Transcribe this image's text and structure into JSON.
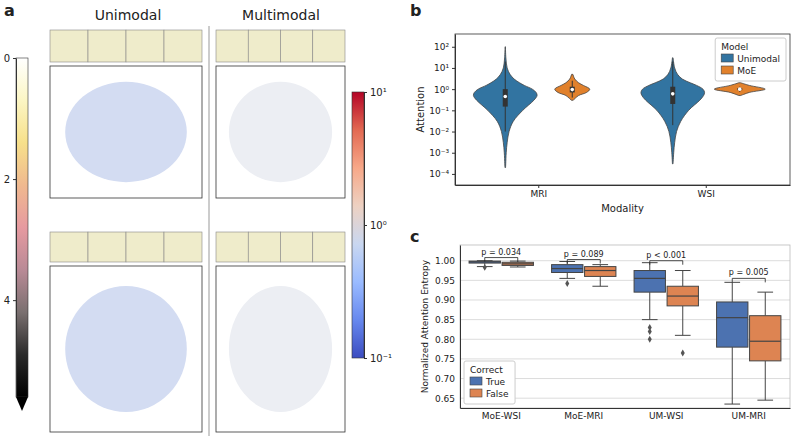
{
  "chart_data": [
    {
      "type": "image_panel",
      "panel": "a",
      "titles": [
        "Unimodal",
        "Multimodal"
      ],
      "colorbars": [
        {
          "range": [
            0,
            5.6
          ],
          "ticks": [
            0,
            2,
            4
          ],
          "colors": [
            "#ffffff",
            "#fcf6c4",
            "#f7e08a",
            "#f0b98f",
            "#e69aa0",
            "#b98a96",
            "#7a7070",
            "#2a2a2a",
            "#000000"
          ]
        },
        {
          "range": [
            0.1,
            10
          ],
          "log": true,
          "ticks": [
            {
              "value": 0.1,
              "label": "10⁻¹"
            },
            {
              "value": 1,
              "label": "10⁰"
            },
            {
              "value": 10,
              "label": "10¹"
            }
          ],
          "colors": [
            "#3b4cc0",
            "#6788ee",
            "#9abbff",
            "#c9d7f0",
            "#edd1c2",
            "#f7a889",
            "#e26952",
            "#b40426"
          ]
        }
      ]
    },
    {
      "type": "violin",
      "panel": "b",
      "x_label": "Modality",
      "y_label": "Attention",
      "categories": [
        "MRI",
        "WSI"
      ],
      "log": "y",
      "ylim": [
        3e-05,
        400
      ],
      "yticks": [
        {
          "value": 0.0001,
          "label": "10⁻⁴"
        },
        {
          "value": 0.001,
          "label": "10⁻³"
        },
        {
          "value": 0.01,
          "label": "10⁻²"
        },
        {
          "value": 0.1,
          "label": "10⁻¹"
        },
        {
          "value": 1,
          "label": "10⁰"
        },
        {
          "value": 10,
          "label": "10¹"
        },
        {
          "value": 100,
          "label": "10²"
        }
      ],
      "legend": "upper right",
      "legend_title": "Model",
      "density_y": [
        0.0002,
        0.0003,
        0.001,
        0.003,
        0.01,
        0.03,
        0.1,
        0.3,
        0.5,
        0.7,
        1,
        1.5,
        2,
        3,
        5,
        10,
        30,
        100
      ],
      "series": [
        {
          "name": "Unimodal",
          "color": "#3274a1",
          "density": [
            [
              0.01,
              0.015,
              0.03,
              0.06,
              0.12,
              0.25,
              0.55,
              0.9,
              1.0,
              0.97,
              0.85,
              0.6,
              0.45,
              0.28,
              0.15,
              0.06,
              0.02,
              0.005
            ],
            [
              null,
              0.01,
              0.03,
              0.06,
              0.12,
              0.25,
              0.5,
              0.85,
              0.97,
              1.0,
              0.95,
              0.75,
              0.55,
              0.3,
              0.15,
              0.06,
              0.01,
              null
            ]
          ],
          "quartiles": [
            [
              0.15,
              0.45,
              1.0
            ],
            [
              0.2,
              0.6,
              1.3
            ]
          ],
          "whiskers": [
            [
              0.01,
              20
            ],
            [
              0.02,
              20
            ]
          ]
        },
        {
          "name": "MoE",
          "color": "#e1812c",
          "density": [
            [
              null,
              null,
              null,
              null,
              null,
              null,
              null,
              0.03,
              0.2,
              0.45,
              0.55,
              0.35,
              0.2,
              0.08,
              0.02,
              null,
              null,
              null
            ],
            [
              null,
              null,
              null,
              null,
              null,
              null,
              null,
              null,
              0.03,
              0.3,
              0.8,
              0.3,
              0.03,
              null,
              null,
              null,
              null,
              null
            ]
          ],
          "quartiles": [
            [
              0.7,
              0.95,
              1.3
            ],
            [
              0.9,
              1.0,
              1.1
            ]
          ],
          "whiskers": [
            [
              0.4,
              2.5
            ],
            [
              0.75,
              1.3
            ]
          ]
        }
      ]
    },
    {
      "type": "box",
      "panel": "c",
      "y_label": "Normalized Attention Entropy",
      "categories": [
        "MoE-WSI",
        "MoE-MRI",
        "UM-WSI",
        "UM-MRI"
      ],
      "ylim": [
        0.625,
        1.04
      ],
      "yticks": [
        0.65,
        {
          "value": 0.7,
          "label": "0.70"
        },
        0.75,
        {
          "value": 0.8,
          "label": "0.80"
        },
        0.85,
        {
          "value": 0.9,
          "label": "0.90"
        },
        0.95,
        {
          "value": 1,
          "label": "1.00"
        }
      ],
      "grid": true,
      "legend": "lower left",
      "legend_title": "Correct",
      "series": [
        {
          "name": "True",
          "color": "#4c72b0",
          "values": [
            [
              0.985,
              0.994,
              0.997,
              0.999,
              1.0
            ],
            [
              0.955,
              0.97,
              0.98,
              0.99,
              0.998
            ],
            [
              0.85,
              0.92,
              0.955,
              0.975,
              0.995
            ],
            [
              0.635,
              0.78,
              0.855,
              0.895,
              0.945
            ]
          ],
          "outliers": [
            [
              0.983
            ],
            [
              0.942
            ],
            [
              0.83,
              0.82,
              0.8
            ],
            []
          ]
        },
        {
          "name": "False",
          "color": "#dd8452",
          "values": [
            [
              0.984,
              0.988,
              0.992,
              0.996,
              0.999
            ],
            [
              0.935,
              0.96,
              0.975,
              0.985,
              0.99
            ],
            [
              0.81,
              0.885,
              0.91,
              0.935,
              0.975
            ],
            [
              0.645,
              0.745,
              0.795,
              0.86,
              0.92
            ]
          ],
          "outliers": [
            [],
            [],
            [
              0.765
            ],
            []
          ]
        }
      ],
      "annotations": [
        {
          "text": "p = 0.034",
          "category": "MoE-WSI",
          "y": 1.008
        },
        {
          "text": "p = 0.089",
          "category": "MoE-MRI",
          "y": 1.003
        },
        {
          "text": "p < 0.001",
          "category": "UM-WSI",
          "y": 1.0
        },
        {
          "text": "p = 0.005",
          "category": "UM-MRI",
          "y": 0.955
        }
      ]
    }
  ]
}
